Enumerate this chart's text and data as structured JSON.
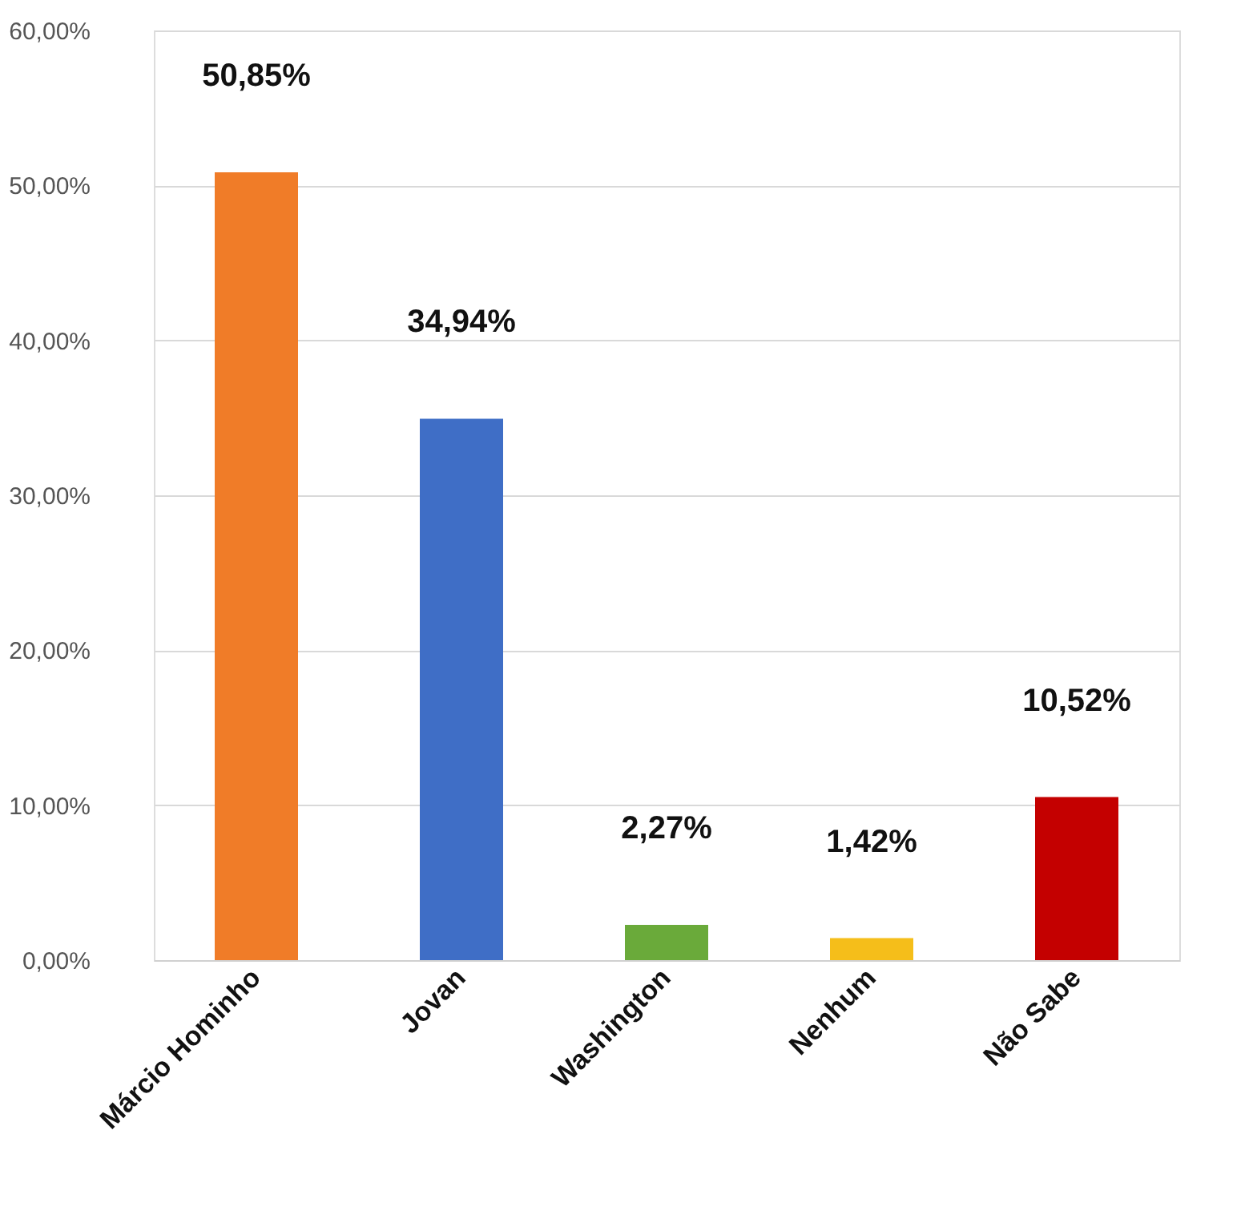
{
  "chart_data": {
    "type": "bar",
    "categories": [
      "Márcio Hominho",
      "Jovan",
      "Washington",
      "Nenhum",
      "Não Sabe"
    ],
    "values": [
      50.85,
      34.94,
      2.27,
      1.42,
      10.52
    ],
    "colors": [
      "#f07c28",
      "#3f6ec6",
      "#6aaa3a",
      "#f5be1a",
      "#c40000"
    ],
    "value_labels": [
      "50,85%",
      "34,94%",
      "2,27%",
      "1,42%",
      "10,52%"
    ],
    "ylim": [
      0,
      60
    ],
    "yticks": [
      {
        "value": 0,
        "label": "0,00%"
      },
      {
        "value": 10,
        "label": "10,00%"
      },
      {
        "value": 20,
        "label": "20,00%"
      },
      {
        "value": 30,
        "label": "30,00%"
      },
      {
        "value": 40,
        "label": "40,00%"
      },
      {
        "value": 50,
        "label": "50,00%"
      },
      {
        "value": 60,
        "label": "60,00%"
      }
    ],
    "grid": "y"
  }
}
